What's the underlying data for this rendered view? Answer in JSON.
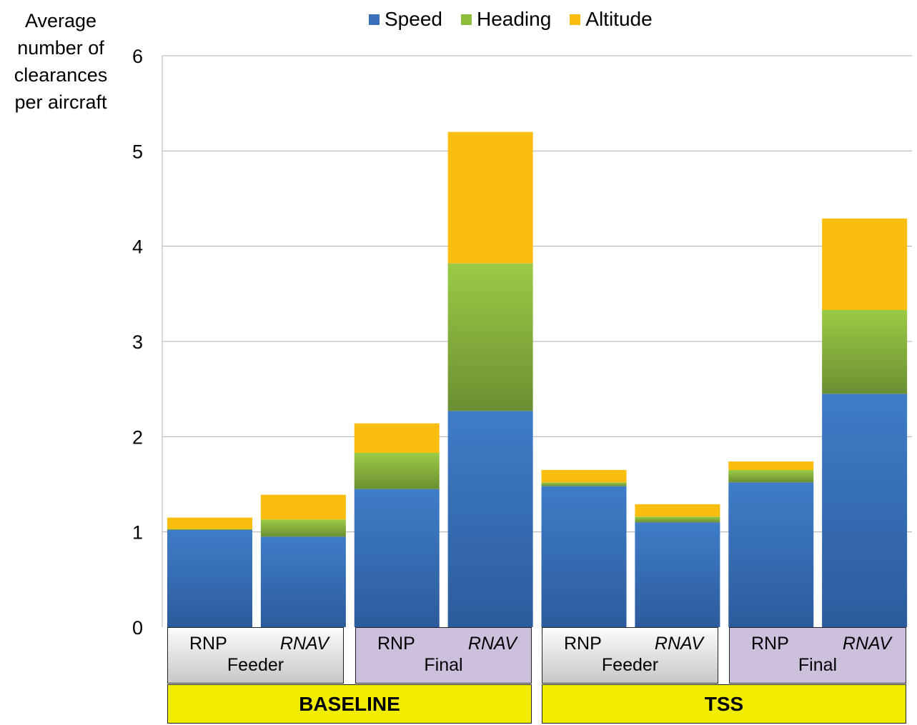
{
  "chart_data": {
    "type": "bar",
    "stacked": true,
    "ylabel": "Average number of clearances per aircraft",
    "ylim": [
      0,
      6
    ],
    "yticks": [
      "0",
      "1",
      "2",
      "3",
      "4",
      "5",
      "6"
    ],
    "grid": true,
    "legend_position": "top",
    "categories": [
      "BASELINE Feeder RNP",
      "BASELINE Feeder RNAV",
      "BASELINE Final RNP",
      "BASELINE Final RNAV",
      "TSS Feeder RNP",
      "TSS Feeder RNAV",
      "TSS Final RNP",
      "TSS Final RNAV"
    ],
    "series": [
      {
        "name": "Speed",
        "color": "#3a70b8",
        "values": [
          1.02,
          0.95,
          1.45,
          2.27,
          1.48,
          1.1,
          1.52,
          2.45
        ]
      },
      {
        "name": "Heading",
        "color": "#8cbe3c",
        "values": [
          0.01,
          0.18,
          0.38,
          1.55,
          0.04,
          0.06,
          0.13,
          0.88
        ]
      },
      {
        "name": "Altitude",
        "color": "#fbbd10",
        "values": [
          0.12,
          0.26,
          0.31,
          1.38,
          0.13,
          0.13,
          0.09,
          0.96
        ]
      }
    ],
    "axis_groups": [
      {
        "name": "BASELINE",
        "subgroups": [
          {
            "name": "Feeder",
            "items": [
              "RNP",
              "RNAV"
            ]
          },
          {
            "name": "Final",
            "items": [
              "RNP",
              "RNAV"
            ]
          }
        ]
      },
      {
        "name": "TSS",
        "subgroups": [
          {
            "name": "Feeder",
            "items": [
              "RNP",
              "RNAV"
            ]
          },
          {
            "name": "Final",
            "items": [
              "RNP",
              "RNAV"
            ]
          }
        ]
      }
    ]
  }
}
